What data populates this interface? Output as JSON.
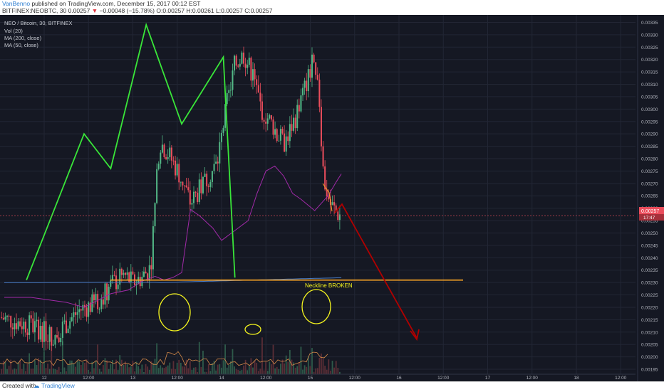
{
  "header": {
    "author": "VanBenno",
    "published": " published on TradingView.com, December 15, 2017 00:12 EST",
    "symbol_line": "BITFINEX:NEOBTC, 30  0.00257",
    "change_arrow": "▼",
    "change": "−0.00048 (−15.78%)",
    "ohlc": "O:0.00257 H:0.00261 L:0.00257 C:0.00257"
  },
  "legend": {
    "title": "NEO / Bitcoin, 30, BITFINEX",
    "items": [
      "Vol (20)",
      "MA (200, close)",
      "MA (50, close)"
    ]
  },
  "annotation": {
    "neckline_text": "Neckline BROKEN"
  },
  "price_badge": {
    "price": "0.00257",
    "countdown": "17:47"
  },
  "footer": {
    "created_with": "Created with",
    "brand": "TradingView"
  },
  "colors": {
    "bg": "#151823",
    "up": "#53b987",
    "down": "#eb4d5c",
    "pattern": "#39e639",
    "neckline": "#ffa726",
    "arrow": "#b00000",
    "ma200": "#4a7ec9",
    "ma50": "#a12aa8",
    "circle": "#f5f51e",
    "volume": "#2b3040",
    "vol_ma": "#d98c4a"
  },
  "chart_data": {
    "type": "candlestick",
    "symbol": "NEO / Bitcoin",
    "exchange": "BITFINEX",
    "interval": "30",
    "x_ticks": [
      "12",
      "12:00",
      "13",
      "12:00",
      "14",
      "12:00",
      "15",
      "12:00",
      "16",
      "12:00",
      "17",
      "12:00",
      "18",
      "12:00"
    ],
    "y_ticks": [
      "0.00335",
      "0.00330",
      "0.00325",
      "0.00320",
      "0.00315",
      "0.00310",
      "0.00305",
      "0.00300",
      "0.00295",
      "0.00290",
      "0.00285",
      "0.00280",
      "0.00275",
      "0.00270",
      "0.00265",
      "0.00260",
      "0.00255",
      "0.00250",
      "0.00245",
      "0.00240",
      "0.00235",
      "0.00230",
      "0.00225",
      "0.00220",
      "0.00215",
      "0.00210",
      "0.00205",
      "0.00200",
      "0.00195"
    ],
    "ylim": [
      0.00193,
      0.00338
    ],
    "last_price": 0.00257,
    "neckline_price": 0.00231,
    "pattern_points": [
      [
        0.3,
        0.00231
      ],
      [
        0.95,
        0.0029
      ],
      [
        1.25,
        0.00276
      ],
      [
        1.65,
        0.00334
      ],
      [
        2.05,
        0.00294
      ],
      [
        2.52,
        0.00321
      ],
      [
        2.65,
        0.00232
      ]
    ],
    "pattern_line": "triple top"
  }
}
